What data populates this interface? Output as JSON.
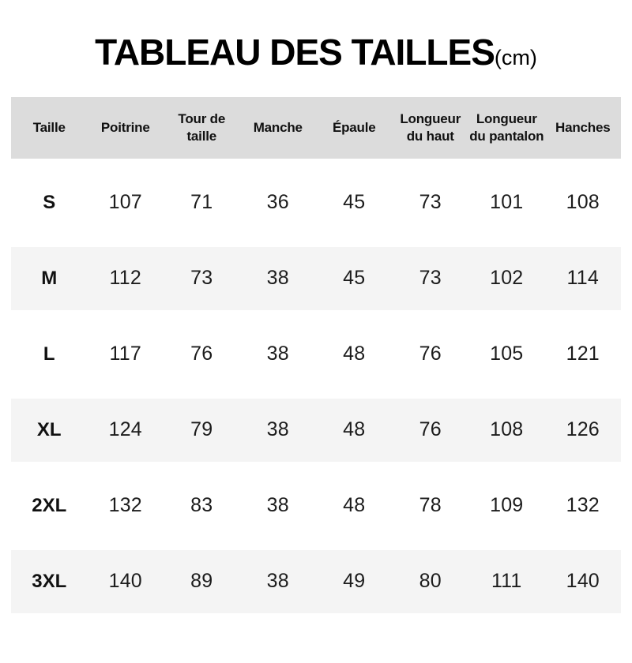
{
  "title": {
    "main": "TABLEAU DES TAILLES",
    "unit": "(cm)"
  },
  "colors": {
    "header_bg": "#dcdcdc",
    "stripe_bg": "#f4f4f4",
    "text": "#111111",
    "background": "#ffffff"
  },
  "table": {
    "headers": [
      "Taille",
      "Poitrine",
      "Tour de\ntaille",
      "Manche",
      "Épaule",
      "Longueur\ndu haut",
      "Longueur\ndu pantalon",
      "Hanches"
    ],
    "rows": [
      {
        "size": "S",
        "values": [
          "107",
          "71",
          "36",
          "45",
          "73",
          "101",
          "108"
        ]
      },
      {
        "size": "M",
        "values": [
          "112",
          "73",
          "38",
          "45",
          "73",
          "102",
          "114"
        ]
      },
      {
        "size": "L",
        "values": [
          "117",
          "76",
          "38",
          "48",
          "76",
          "105",
          "121"
        ]
      },
      {
        "size": "XL",
        "values": [
          "124",
          "79",
          "38",
          "48",
          "76",
          "108",
          "126"
        ]
      },
      {
        "size": "2XL",
        "values": [
          "132",
          "83",
          "38",
          "48",
          "78",
          "109",
          "132"
        ]
      },
      {
        "size": "3XL",
        "values": [
          "140",
          "89",
          "38",
          "49",
          "80",
          "111",
          "140"
        ]
      }
    ]
  }
}
